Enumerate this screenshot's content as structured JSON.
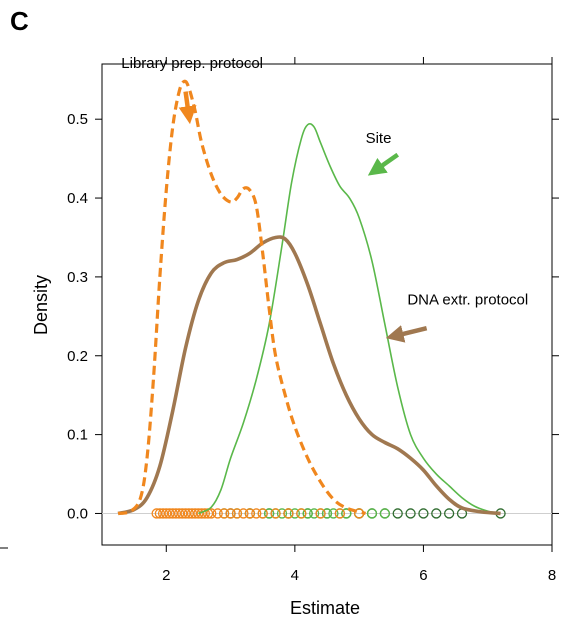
{
  "panel_label": "C",
  "chart_data": {
    "type": "line",
    "xlabel": "Estimate",
    "ylabel": "Density",
    "xlim": [
      1.0,
      8.0
    ],
    "ylim": [
      -0.04,
      0.57
    ],
    "x_ticks": [
      2,
      4,
      6,
      8
    ],
    "y_ticks": [
      0.0,
      0.1,
      0.2,
      0.3,
      0.4,
      0.5
    ],
    "y_tick_labels": [
      "0.0",
      "0.1",
      "0.2",
      "0.3",
      "0.4",
      "0.5"
    ],
    "grid": false,
    "series": [
      {
        "name": "Library prep. protocol",
        "color": "#f0871e",
        "style": "dashed",
        "points": [
          [
            1.25,
            0.0
          ],
          [
            1.45,
            0.003
          ],
          [
            1.6,
            0.02
          ],
          [
            1.7,
            0.07
          ],
          [
            1.8,
            0.17
          ],
          [
            1.9,
            0.3
          ],
          [
            2.0,
            0.41
          ],
          [
            2.1,
            0.49
          ],
          [
            2.2,
            0.535
          ],
          [
            2.28,
            0.548
          ],
          [
            2.35,
            0.54
          ],
          [
            2.45,
            0.51
          ],
          [
            2.55,
            0.47
          ],
          [
            2.7,
            0.43
          ],
          [
            2.85,
            0.405
          ],
          [
            3.0,
            0.395
          ],
          [
            3.1,
            0.4
          ],
          [
            3.2,
            0.412
          ],
          [
            3.3,
            0.41
          ],
          [
            3.4,
            0.39
          ],
          [
            3.5,
            0.33
          ],
          [
            3.6,
            0.26
          ],
          [
            3.7,
            0.2
          ],
          [
            3.85,
            0.15
          ],
          [
            4.0,
            0.11
          ],
          [
            4.2,
            0.07
          ],
          [
            4.4,
            0.04
          ],
          [
            4.6,
            0.018
          ],
          [
            4.8,
            0.007
          ],
          [
            5.1,
            0.0
          ]
        ],
        "rug": [
          1.85,
          1.9,
          1.95,
          2.0,
          2.05,
          2.1,
          2.15,
          2.2,
          2.25,
          2.3,
          2.35,
          2.4,
          2.45,
          2.5,
          2.55,
          2.6,
          2.65,
          2.7,
          2.8,
          2.9,
          3.0,
          3.1,
          3.2,
          3.3,
          3.4,
          3.5,
          3.7,
          3.9,
          4.1,
          4.4,
          4.7,
          5.0
        ]
      },
      {
        "name": "Site",
        "color": "#5ab84a",
        "style": "solid",
        "points": [
          [
            2.5,
            0.0
          ],
          [
            2.7,
            0.008
          ],
          [
            2.85,
            0.03
          ],
          [
            3.0,
            0.07
          ],
          [
            3.2,
            0.115
          ],
          [
            3.4,
            0.17
          ],
          [
            3.6,
            0.24
          ],
          [
            3.8,
            0.34
          ],
          [
            3.95,
            0.42
          ],
          [
            4.1,
            0.475
          ],
          [
            4.2,
            0.493
          ],
          [
            4.3,
            0.49
          ],
          [
            4.4,
            0.47
          ],
          [
            4.55,
            0.44
          ],
          [
            4.7,
            0.415
          ],
          [
            4.85,
            0.4
          ],
          [
            5.0,
            0.375
          ],
          [
            5.2,
            0.32
          ],
          [
            5.4,
            0.24
          ],
          [
            5.6,
            0.16
          ],
          [
            5.8,
            0.1
          ],
          [
            6.0,
            0.07
          ],
          [
            6.2,
            0.05
          ],
          [
            6.4,
            0.035
          ],
          [
            6.6,
            0.02
          ],
          [
            6.8,
            0.009
          ],
          [
            7.0,
            0.003
          ],
          [
            7.2,
            0.0
          ]
        ],
        "rug": [
          2.9,
          3.1,
          3.3,
          3.5,
          3.6,
          3.7,
          3.8,
          3.9,
          4.0,
          4.1,
          4.2,
          4.3,
          4.4,
          4.5,
          4.6,
          4.7,
          4.8,
          5.0,
          5.2,
          5.4
        ]
      },
      {
        "name": "DNA extr. protocol",
        "color": "#a07850",
        "style": "solid-thick",
        "points": [
          [
            1.25,
            0.0
          ],
          [
            1.5,
            0.005
          ],
          [
            1.7,
            0.02
          ],
          [
            1.9,
            0.06
          ],
          [
            2.1,
            0.13
          ],
          [
            2.3,
            0.21
          ],
          [
            2.5,
            0.27
          ],
          [
            2.7,
            0.305
          ],
          [
            2.9,
            0.318
          ],
          [
            3.1,
            0.322
          ],
          [
            3.3,
            0.33
          ],
          [
            3.5,
            0.343
          ],
          [
            3.7,
            0.35
          ],
          [
            3.85,
            0.348
          ],
          [
            4.0,
            0.33
          ],
          [
            4.2,
            0.29
          ],
          [
            4.4,
            0.24
          ],
          [
            4.6,
            0.19
          ],
          [
            4.8,
            0.15
          ],
          [
            5.0,
            0.12
          ],
          [
            5.2,
            0.1
          ],
          [
            5.4,
            0.09
          ],
          [
            5.6,
            0.082
          ],
          [
            5.8,
            0.07
          ],
          [
            6.0,
            0.055
          ],
          [
            6.2,
            0.035
          ],
          [
            6.4,
            0.018
          ],
          [
            6.6,
            0.007
          ],
          [
            6.9,
            0.002
          ],
          [
            7.2,
            0.0
          ]
        ],
        "rug": [
          3.0,
          3.3,
          3.6,
          3.9,
          4.2,
          4.5,
          4.8,
          5.0,
          5.2,
          5.4,
          5.6,
          5.8,
          6.0,
          6.2,
          6.4,
          6.6,
          7.2
        ]
      }
    ],
    "annotations": [
      {
        "text": "Library prep. protocol",
        "series": 0,
        "tx": 1.3,
        "ty": 0.565,
        "ax0": 2.3,
        "ay0": 0.535,
        "ax1": 2.35,
        "ay1": 0.505
      },
      {
        "text": "Site",
        "series": 1,
        "tx": 5.1,
        "ty": 0.47,
        "ax0": 5.6,
        "ay0": 0.455,
        "ax1": 5.25,
        "ay1": 0.435
      },
      {
        "text": "DNA extr. protocol",
        "series": 2,
        "tx": 5.75,
        "ty": 0.265,
        "ax0": 6.05,
        "ay0": 0.235,
        "ax1": 5.55,
        "ay1": 0.225
      }
    ]
  }
}
